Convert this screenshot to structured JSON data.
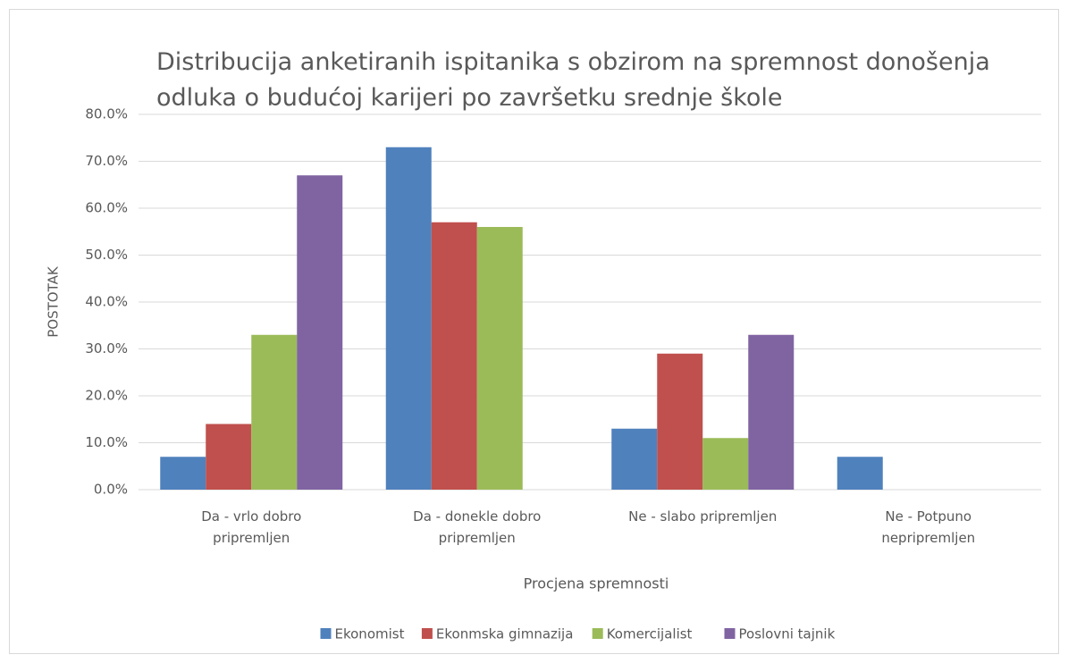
{
  "chart_data": {
    "type": "bar",
    "title": "Distribucija anketiranih ispitanika s obzirom na spremnost donošenja odluka o budućoj karijeri po završetku srednje škole",
    "x_label": "Procjena spremnosti",
    "y_label": "POSTOTAK",
    "categories": [
      "Da - vrlo dobro pripremljen",
      "Da - donekle dobro pripremljen",
      "Ne - slabo pripremljen",
      "Ne - Potpuno nepripremljen"
    ],
    "series": [
      {
        "name": "Ekonomist",
        "color": "#4f81bd",
        "values": [
          7,
          73,
          13,
          7
        ]
      },
      {
        "name": "Ekonmska gimnazija",
        "color": "#c0504d",
        "values": [
          14,
          57,
          29,
          0
        ]
      },
      {
        "name": "Komercijalist",
        "color": "#9bbb59",
        "values": [
          33,
          56,
          11,
          0
        ]
      },
      {
        "name": "Poslovni tajnik",
        "color": "#8064a2",
        "values": [
          67,
          0,
          33,
          0
        ]
      }
    ],
    "ylim": [
      0,
      80
    ],
    "yticks": [
      {
        "value": 0,
        "label": "0.0%"
      },
      {
        "value": 10,
        "label": "10.0%"
      },
      {
        "value": 20,
        "label": "20.0%"
      },
      {
        "value": 30,
        "label": "30.0%"
      },
      {
        "value": 40,
        "label": "40.0%"
      },
      {
        "value": 50,
        "label": "50.0%"
      },
      {
        "value": 60,
        "label": "60.0%"
      },
      {
        "value": 70,
        "label": "70.0%"
      },
      {
        "value": 80,
        "label": "80.0%"
      }
    ],
    "grid": true,
    "legend": "bottom"
  }
}
